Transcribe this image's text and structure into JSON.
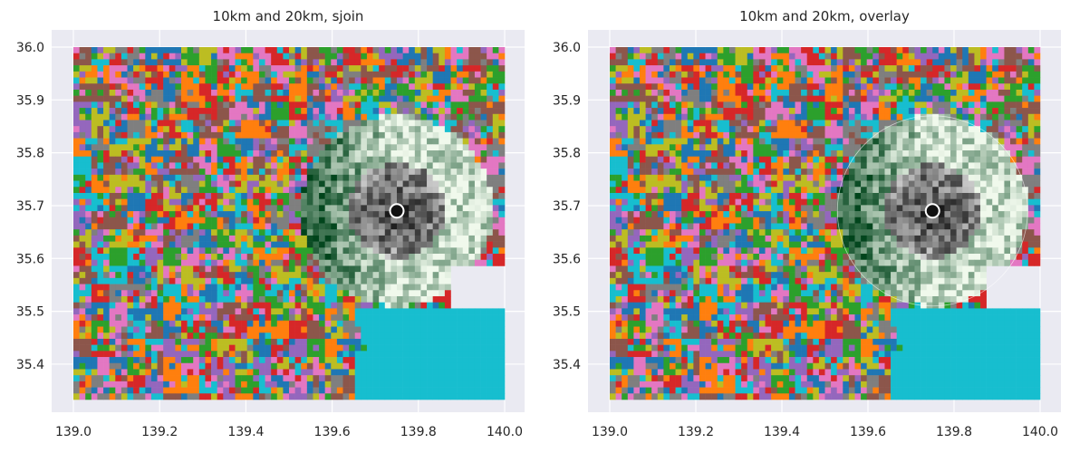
{
  "chart_data": [
    {
      "type": "heatmap",
      "title": "10km and 20km, sjoin",
      "xlabel": "",
      "ylabel": "",
      "xlim": [
        139.0,
        140.0
      ],
      "ylim": [
        35.333,
        36.0
      ],
      "x_ticks": [
        "139.0",
        "139.2",
        "139.4",
        "139.6",
        "139.8",
        "140.0"
      ],
      "y_ticks": [
        "35.4",
        "35.5",
        "35.6",
        "35.7",
        "35.8",
        "35.9",
        "36.0"
      ],
      "grid": true,
      "center_point": {
        "x": 139.75,
        "y": 35.69
      },
      "inner_radius_km": 10,
      "outer_radius_km": 20,
      "method": "sjoin",
      "base_palette": [
        "#1f77b4",
        "#ff7f0e",
        "#2ca02c",
        "#d62728",
        "#9467bd",
        "#8c564b",
        "#e377c2",
        "#7f7f7f",
        "#bcbd22",
        "#17becf"
      ],
      "inner_colormap": "Greys",
      "outer_colormap": "Greens"
    },
    {
      "type": "heatmap",
      "title": "10km and 20km, overlay",
      "xlabel": "",
      "ylabel": "",
      "xlim": [
        139.0,
        140.0
      ],
      "ylim": [
        35.333,
        36.0
      ],
      "x_ticks": [
        "139.0",
        "139.2",
        "139.4",
        "139.6",
        "139.8",
        "140.0"
      ],
      "y_ticks": [
        "35.4",
        "35.5",
        "35.6",
        "35.7",
        "35.8",
        "35.9",
        "36.0"
      ],
      "grid": true,
      "center_point": {
        "x": 139.75,
        "y": 35.69
      },
      "inner_radius_km": 10,
      "outer_radius_km": 20,
      "method": "overlay",
      "base_palette": [
        "#1f77b4",
        "#ff7f0e",
        "#2ca02c",
        "#d62728",
        "#9467bd",
        "#8c564b",
        "#e377c2",
        "#7f7f7f",
        "#bcbd22",
        "#17becf"
      ],
      "inner_colormap": "Greys",
      "outer_colormap": "Greens"
    }
  ]
}
